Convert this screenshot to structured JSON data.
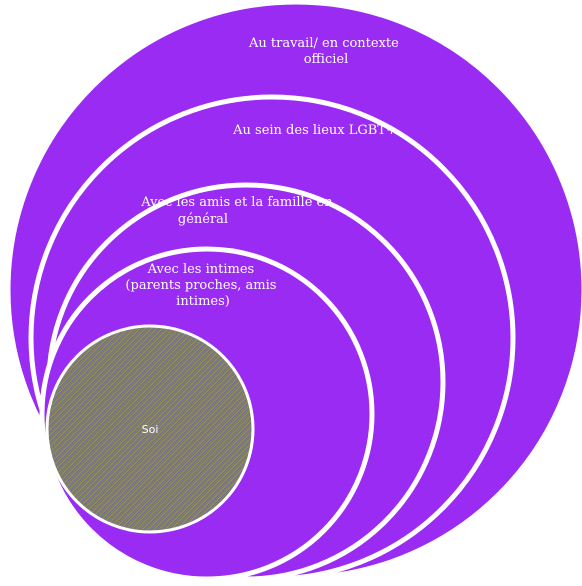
{
  "diagram": {
    "rings": [
      {
        "lines": [
          "Au travail/ en contexte",
          "officiel"
        ]
      },
      {
        "lines": [
          "Au sein des lieux LGBT+"
        ]
      },
      {
        "lines": [
          "Avec les amis et la famille en",
          "général"
        ]
      },
      {
        "lines": [
          "Avec les intimes",
          "(parents proches, amis",
          "intimes)"
        ]
      }
    ],
    "center": {
      "label": "Soi"
    }
  },
  "colors": {
    "ring_fill": "#9a2bf3",
    "ring_stroke": "#ffffff",
    "center_stripe_a": "#6c6a4a",
    "center_stripe_b": "#a79a8c",
    "center_stripe_c": "#5e5ab0",
    "center_outline": "#ffffff"
  }
}
